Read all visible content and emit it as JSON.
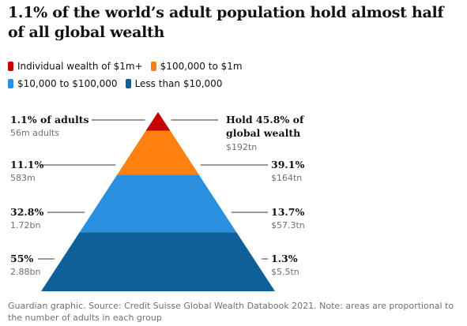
{
  "title": "1.1% of the world’s adult population hold almost half of all global wealth",
  "legend": [
    {
      "label": "Individual wealth of $1m+",
      "color": "#c70000"
    },
    {
      "label": "$100,000 to $1m",
      "color": "#ff7f0f"
    },
    {
      "label": "$10,000 to $100,000",
      "color": "#2b90e0"
    },
    {
      "label": "Less than $10,000",
      "color": "#0f6099"
    }
  ],
  "footer": "Guardian graphic. Source: Credit Suisse Global Wealth Databook 2021. Note: areas are proportional to the number of adults in each group",
  "chart_data": {
    "type": "pyramid",
    "tiers": [
      {
        "group": "Individual wealth of $1m+",
        "adults_pct_label": "1.1% of adults",
        "adults_pct": 1.1,
        "adults_count": "56m adults",
        "wealth_pct_label": "Hold 45.8% of global wealth",
        "wealth_pct": 45.8,
        "wealth_amount": "$192tn",
        "color": "#c70000"
      },
      {
        "group": "$100,000 to $1m",
        "adults_pct_label": "11.1%",
        "adults_pct": 11.1,
        "adults_count": "583m",
        "wealth_pct_label": "39.1%",
        "wealth_pct": 39.1,
        "wealth_amount": "$164tn",
        "color": "#ff7f0f"
      },
      {
        "group": "$10,000 to $100,000",
        "adults_pct_label": "32.8%",
        "adults_pct": 32.8,
        "adults_count": "1.72bn",
        "wealth_pct_label": "13.7%",
        "wealth_pct": 13.7,
        "wealth_amount": "$57.3tn",
        "color": "#2b90e0"
      },
      {
        "group": "Less than $10,000",
        "adults_pct_label": "55%",
        "adults_pct": 55,
        "adults_count": "2.88bn",
        "wealth_pct_label": "1.3%",
        "wealth_pct": 1.3,
        "wealth_amount": "$5.5tn",
        "color": "#0f6099"
      }
    ]
  }
}
